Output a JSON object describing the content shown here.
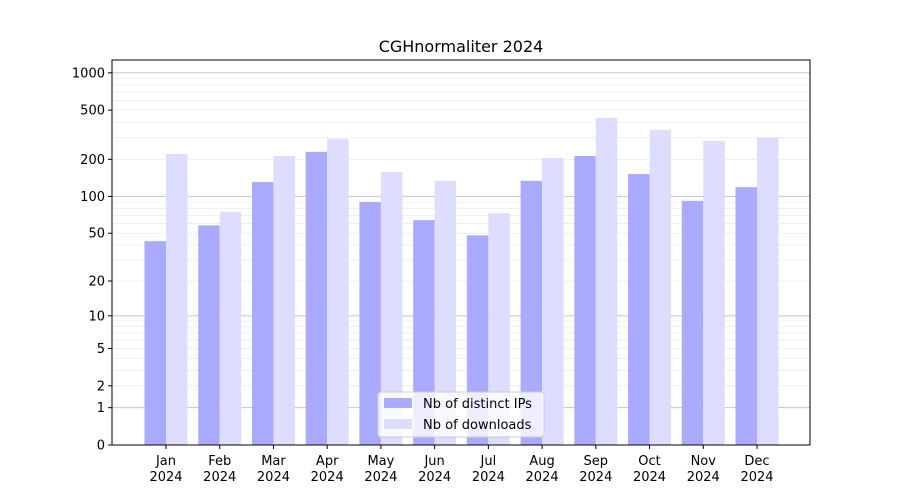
{
  "chart_data": {
    "type": "bar",
    "title": "CGHnormaliter 2024",
    "xlabel": "",
    "ylabel": "",
    "yscale": "log(1+y)",
    "ylim": [
      0,
      1270
    ],
    "yticks": [
      0,
      1,
      2,
      5,
      10,
      20,
      50,
      100,
      200,
      500,
      1000
    ],
    "grid": true,
    "legend_position": "lower-center",
    "categories": [
      "Jan\n2024",
      "Feb\n2024",
      "Mar\n2024",
      "Apr\n2024",
      "May\n2024",
      "Jun\n2024",
      "Jul\n2024",
      "Aug\n2024",
      "Sep\n2024",
      "Oct\n2024",
      "Nov\n2024",
      "Dec\n2024"
    ],
    "series": [
      {
        "name": "Nb of distinct IPs",
        "color": "#aaaaff",
        "values": [
          43,
          58,
          131,
          230,
          90,
          64,
          48,
          134,
          213,
          152,
          92,
          119
        ]
      },
      {
        "name": "Nb of downloads",
        "color": "#ddddff",
        "values": [
          221,
          75,
          213,
          293,
          158,
          134,
          73,
          205,
          433,
          346,
          282,
          298
        ]
      }
    ]
  }
}
